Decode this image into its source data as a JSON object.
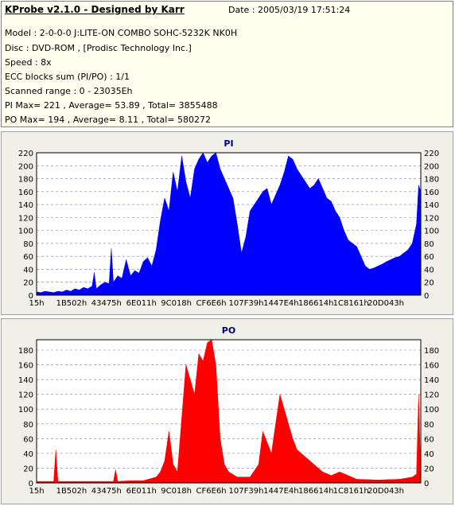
{
  "header": {
    "title": "KProbe v2.1.0 - Designed by Karr",
    "date": "Date : 2005/03/19 17:51:24",
    "lines": [
      "Model : 2-0-0-0 J:LITE-ON COMBO SOHC-5232K NK0H",
      "Disc : DVD-ROM ,  [Prodisc Technology Inc.]",
      "Speed : 8x",
      "ECC blocks sum (PI/PO) : 1/1",
      "Scanned range : 0 - 23035Eh",
      "PI Max= 221 , Average= 53.89 , Total= 3855488",
      "PO Max= 194 , Average= 8.11 , Total= 580272"
    ]
  },
  "chart_data": [
    {
      "type": "area",
      "title": "PI",
      "color": "#0000ff",
      "ylim": [
        0,
        220
      ],
      "yticks": [
        0,
        20,
        40,
        60,
        80,
        100,
        120,
        140,
        160,
        180,
        200,
        220
      ],
      "xticks": [
        "15h",
        "1B502h",
        "43475h",
        "6E011h",
        "9C018h",
        "CF6E6h",
        "107F39h",
        "1447E4h",
        "186614h",
        "1C8161h",
        "20D043h"
      ],
      "grid": true,
      "series": [
        {
          "points": [
            [
              0,
              5
            ],
            [
              2,
              4
            ],
            [
              4,
              6
            ],
            [
              6,
              5
            ],
            [
              8,
              4
            ],
            [
              10,
              6
            ],
            [
              12,
              5
            ],
            [
              14,
              8
            ],
            [
              16,
              6
            ],
            [
              18,
              10
            ],
            [
              20,
              8
            ],
            [
              22,
              12
            ],
            [
              24,
              10
            ],
            [
              26,
              14
            ],
            [
              27,
              35
            ],
            [
              28,
              10
            ],
            [
              30,
              16
            ],
            [
              32,
              20
            ],
            [
              34,
              18
            ],
            [
              35,
              72
            ],
            [
              36,
              20
            ],
            [
              38,
              30
            ],
            [
              40,
              26
            ],
            [
              42,
              55
            ],
            [
              44,
              30
            ],
            [
              46,
              38
            ],
            [
              48,
              34
            ],
            [
              50,
              52
            ],
            [
              52,
              58
            ],
            [
              54,
              45
            ],
            [
              56,
              70
            ],
            [
              58,
              115
            ],
            [
              60,
              150
            ],
            [
              62,
              130
            ],
            [
              64,
              190
            ],
            [
              66,
              160
            ],
            [
              68,
              215
            ],
            [
              70,
              175
            ],
            [
              72,
              150
            ],
            [
              74,
              195
            ],
            [
              76,
              210
            ],
            [
              78,
              220
            ],
            [
              80,
              205
            ],
            [
              82,
              215
            ],
            [
              84,
              220
            ],
            [
              86,
              195
            ],
            [
              88,
              180
            ],
            [
              90,
              165
            ],
            [
              92,
              150
            ],
            [
              94,
              110
            ],
            [
              96,
              65
            ],
            [
              98,
              90
            ],
            [
              100,
              130
            ],
            [
              102,
              140
            ],
            [
              104,
              150
            ],
            [
              106,
              160
            ],
            [
              108,
              165
            ],
            [
              110,
              140
            ],
            [
              112,
              155
            ],
            [
              114,
              170
            ],
            [
              116,
              190
            ],
            [
              118,
              215
            ],
            [
              120,
              210
            ],
            [
              122,
              195
            ],
            [
              124,
              185
            ],
            [
              126,
              175
            ],
            [
              128,
              165
            ],
            [
              130,
              170
            ],
            [
              132,
              180
            ],
            [
              134,
              165
            ],
            [
              136,
              150
            ],
            [
              138,
              145
            ],
            [
              140,
              130
            ],
            [
              142,
              120
            ],
            [
              144,
              100
            ],
            [
              146,
              85
            ],
            [
              148,
              80
            ],
            [
              150,
              75
            ],
            [
              152,
              60
            ],
            [
              154,
              45
            ],
            [
              156,
              40
            ],
            [
              158,
              42
            ],
            [
              160,
              45
            ],
            [
              162,
              48
            ],
            [
              164,
              52
            ],
            [
              166,
              55
            ],
            [
              168,
              58
            ],
            [
              170,
              60
            ],
            [
              172,
              65
            ],
            [
              174,
              70
            ],
            [
              176,
              80
            ],
            [
              178,
              110
            ],
            [
              179,
              170
            ],
            [
              180,
              160
            ]
          ]
        }
      ]
    },
    {
      "type": "area",
      "title": "PO",
      "color": "#ff0000",
      "ylim": [
        0,
        194
      ],
      "yticks": [
        0,
        20,
        40,
        60,
        80,
        100,
        120,
        140,
        160,
        180
      ],
      "xticks": [
        "15h",
        "1B502h",
        "43475h",
        "6E011h",
        "9C018h",
        "CF6E6h",
        "107F39h",
        "1447E4h",
        "186614h",
        "1C8161h",
        "20D043h"
      ],
      "grid": true,
      "series": [
        {
          "points": [
            [
              0,
              2
            ],
            [
              4,
              2
            ],
            [
              8,
              2
            ],
            [
              9,
              45
            ],
            [
              10,
              2
            ],
            [
              14,
              2
            ],
            [
              20,
              2
            ],
            [
              26,
              2
            ],
            [
              30,
              2
            ],
            [
              36,
              2
            ],
            [
              37,
              18
            ],
            [
              38,
              2
            ],
            [
              44,
              3
            ],
            [
              50,
              3
            ],
            [
              56,
              8
            ],
            [
              58,
              15
            ],
            [
              60,
              30
            ],
            [
              62,
              70
            ],
            [
              64,
              25
            ],
            [
              66,
              15
            ],
            [
              70,
              160
            ],
            [
              72,
              140
            ],
            [
              74,
              120
            ],
            [
              76,
              175
            ],
            [
              78,
              165
            ],
            [
              80,
              190
            ],
            [
              82,
              194
            ],
            [
              84,
              160
            ],
            [
              86,
              60
            ],
            [
              88,
              25
            ],
            [
              90,
              15
            ],
            [
              94,
              8
            ],
            [
              100,
              8
            ],
            [
              104,
              25
            ],
            [
              106,
              70
            ],
            [
              110,
              40
            ],
            [
              114,
              120
            ],
            [
              116,
              100
            ],
            [
              118,
              80
            ],
            [
              120,
              60
            ],
            [
              122,
              45
            ],
            [
              126,
              35
            ],
            [
              130,
              25
            ],
            [
              134,
              15
            ],
            [
              138,
              10
            ],
            [
              142,
              15
            ],
            [
              146,
              10
            ],
            [
              150,
              5
            ],
            [
              160,
              4
            ],
            [
              170,
              5
            ],
            [
              176,
              8
            ],
            [
              178,
              12
            ],
            [
              179,
              120
            ],
            [
              180,
              8
            ]
          ]
        }
      ]
    }
  ]
}
